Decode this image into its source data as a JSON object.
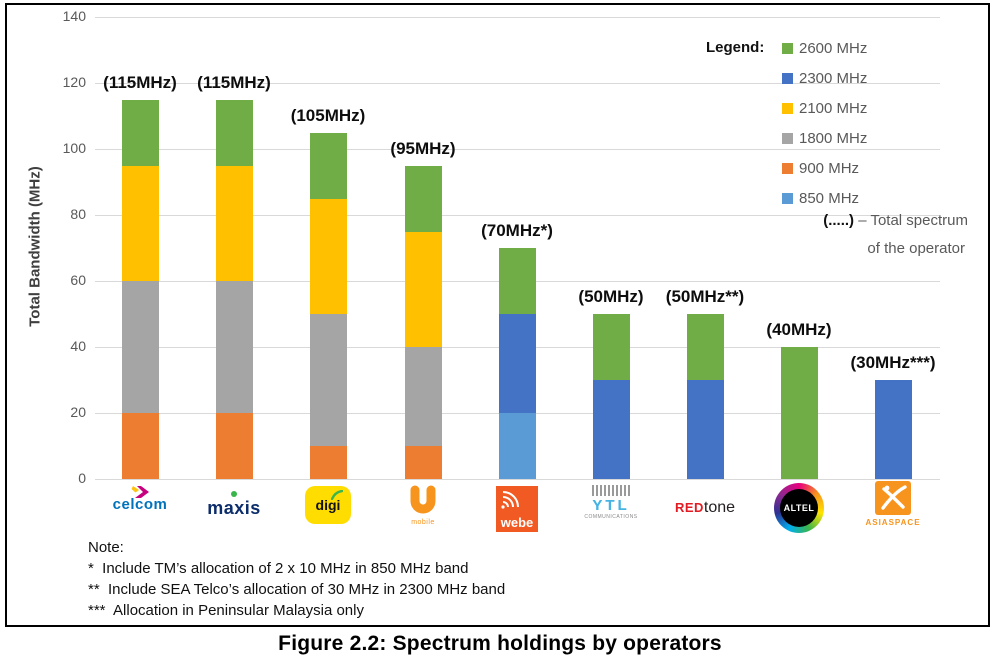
{
  "caption": "Figure 2.2: Spectrum holdings by operators",
  "note": {
    "title": "Note:",
    "lines": [
      "*  Include TM’s allocation of 2 x 10 MHz in 850 MHz band",
      "**  Include SEA Telco’s allocation of 30 MHz in 2300 MHz band",
      "***  Allocation in Peninsular Malaysia only"
    ]
  },
  "legend": {
    "title": "Legend:",
    "items": [
      {
        "label": "2600 MHz",
        "color": "#70AD47"
      },
      {
        "label": "2300 MHz",
        "color": "#4472C4"
      },
      {
        "label": "2100 MHz",
        "color": "#FFC000"
      },
      {
        "label": "1800 MHz",
        "color": "#A5A5A5"
      },
      {
        "label": "900 MHz",
        "color": "#ED7D31"
      },
      {
        "label": "850 MHz",
        "color": "#5B9BD5"
      }
    ],
    "note_prefix": "(.....)",
    "note_text": " – Total spectrum",
    "note_text2": "of the operator"
  },
  "chart_data": {
    "type": "bar",
    "stacked": true,
    "title": "Figure 2.2: Spectrum holdings by operators",
    "xlabel": "",
    "ylabel": "Total Bandwidth (MHz)",
    "ylim": [
      0,
      140
    ],
    "yticks": [
      0,
      20,
      40,
      60,
      80,
      100,
      120,
      140
    ],
    "grid": true,
    "legend_position": "top-right",
    "band_colors": {
      "2600 MHz": "#70AD47",
      "2300 MHz": "#4472C4",
      "2100 MHz": "#FFC000",
      "1800 MHz": "#A5A5A5",
      "900 MHz": "#ED7D31",
      "850 MHz": "#5B9BD5"
    },
    "bars": [
      {
        "operator": "Celcom",
        "total": 115,
        "total_label": "(115MHz)",
        "segments": [
          {
            "band": "900 MHz",
            "value": 20
          },
          {
            "band": "1800 MHz",
            "value": 40
          },
          {
            "band": "2100 MHz",
            "value": 35
          },
          {
            "band": "2600 MHz",
            "value": 20
          }
        ]
      },
      {
        "operator": "Maxis",
        "total": 115,
        "total_label": "(115MHz)",
        "segments": [
          {
            "band": "900 MHz",
            "value": 20
          },
          {
            "band": "1800 MHz",
            "value": 40
          },
          {
            "band": "2100 MHz",
            "value": 35
          },
          {
            "band": "2600 MHz",
            "value": 20
          }
        ]
      },
      {
        "operator": "Digi",
        "total": 105,
        "total_label": "(105MHz)",
        "segments": [
          {
            "band": "900 MHz",
            "value": 10
          },
          {
            "band": "1800 MHz",
            "value": 40
          },
          {
            "band": "2100 MHz",
            "value": 35
          },
          {
            "band": "2600 MHz",
            "value": 20
          }
        ]
      },
      {
        "operator": "U Mobile",
        "total": 95,
        "total_label": "(95MHz)",
        "segments": [
          {
            "band": "900 MHz",
            "value": 10
          },
          {
            "band": "1800 MHz",
            "value": 30
          },
          {
            "band": "2100 MHz",
            "value": 35
          },
          {
            "band": "2600 MHz",
            "value": 20
          }
        ]
      },
      {
        "operator": "webe",
        "total": 70,
        "total_label": "(70MHz*)",
        "segments": [
          {
            "band": "850 MHz",
            "value": 20
          },
          {
            "band": "2300 MHz",
            "value": 30
          },
          {
            "band": "2600 MHz",
            "value": 20
          }
        ]
      },
      {
        "operator": "YTL Communications",
        "total": 50,
        "total_label": "(50MHz)",
        "segments": [
          {
            "band": "2300 MHz",
            "value": 30
          },
          {
            "band": "2600 MHz",
            "value": 20
          }
        ]
      },
      {
        "operator": "REDtone",
        "total": 50,
        "total_label": "(50MHz**)",
        "segments": [
          {
            "band": "2300 MHz",
            "value": 30
          },
          {
            "band": "2600 MHz",
            "value": 20
          }
        ]
      },
      {
        "operator": "ALTEL",
        "total": 40,
        "total_label": "(40MHz)",
        "segments": [
          {
            "band": "2600 MHz",
            "value": 40
          }
        ]
      },
      {
        "operator": "Asiaspace",
        "total": 30,
        "total_label": "(30MHz***)",
        "segments": [
          {
            "band": "2300 MHz",
            "value": 30
          }
        ]
      }
    ]
  },
  "logos": {
    "celcom": "celcom",
    "maxis": "maxis",
    "digi": "digi",
    "umobile_sub": "mobile",
    "webe": "webe",
    "ytl": "YTL",
    "ytl_sub": "COMMUNICATIONS",
    "redtone_red": "RED",
    "redtone_tone": "tone",
    "altel": "ALTEL",
    "asiaspace": "ASIASPACE"
  }
}
